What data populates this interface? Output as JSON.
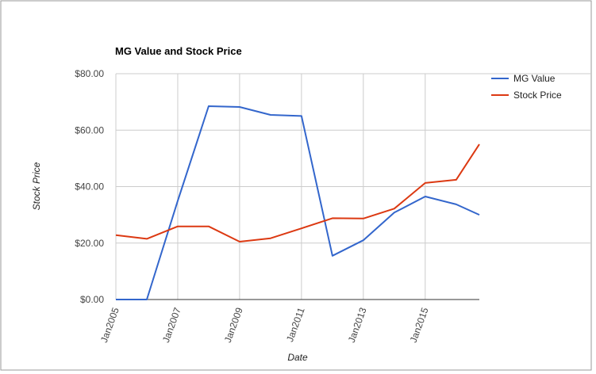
{
  "chart_data": {
    "type": "line",
    "title": "MG Value and Stock Price",
    "xlabel": "Date",
    "ylabel": "Stock Price",
    "x": [
      "2005-01",
      "2006-01",
      "2007-01",
      "2008-01",
      "2009-01",
      "2010-01",
      "2011-01",
      "2012-01",
      "2013-01",
      "2014-01",
      "2015-01",
      "2016-01",
      "2016-10"
    ],
    "x_ticks": [
      {
        "date": "2005-01",
        "label": "Jan2005"
      },
      {
        "date": "2007-01",
        "label": "Jan2007"
      },
      {
        "date": "2009-01",
        "label": "Jan2009"
      },
      {
        "date": "2011-01",
        "label": "Jan2011"
      },
      {
        "date": "2013-01",
        "label": "Jan2013"
      },
      {
        "date": "2015-01",
        "label": "Jan2015"
      }
    ],
    "y_ticks": [
      {
        "value": 0,
        "label": "$0.00"
      },
      {
        "value": 20,
        "label": "$20.00"
      },
      {
        "value": 40,
        "label": "$40.00"
      },
      {
        "value": 60,
        "label": "$60.00"
      },
      {
        "value": 80,
        "label": "$80.00"
      }
    ],
    "xlim": [
      "2005-01",
      "2016-10"
    ],
    "ylim": [
      0,
      80
    ],
    "grid": true,
    "legend_position": "top-right",
    "series": [
      {
        "name": "MG Value",
        "color": "#3366cc",
        "x": [
          "2005-01",
          "2006-01",
          "2007-01",
          "2008-01",
          "2009-01",
          "2010-01",
          "2011-01",
          "2012-01",
          "2013-01",
          "2014-01",
          "2015-01",
          "2016-01",
          "2016-10"
        ],
        "values": [
          0,
          0,
          35,
          68.5,
          68.2,
          65.4,
          65,
          15.5,
          21,
          30.8,
          36.5,
          33.7,
          30
        ]
      },
      {
        "name": "Stock Price",
        "color": "#dc3912",
        "x": [
          "2005-01",
          "2006-01",
          "2007-01",
          "2008-01",
          "2009-01",
          "2010-01",
          "2011-01",
          "2012-01",
          "2013-01",
          "2014-01",
          "2015-01",
          "2016-01",
          "2016-10"
        ],
        "values": [
          22.8,
          21.5,
          25.9,
          25.9,
          20.5,
          21.7,
          25.2,
          28.8,
          28.7,
          32.2,
          41.3,
          42.4,
          55
        ]
      }
    ]
  }
}
